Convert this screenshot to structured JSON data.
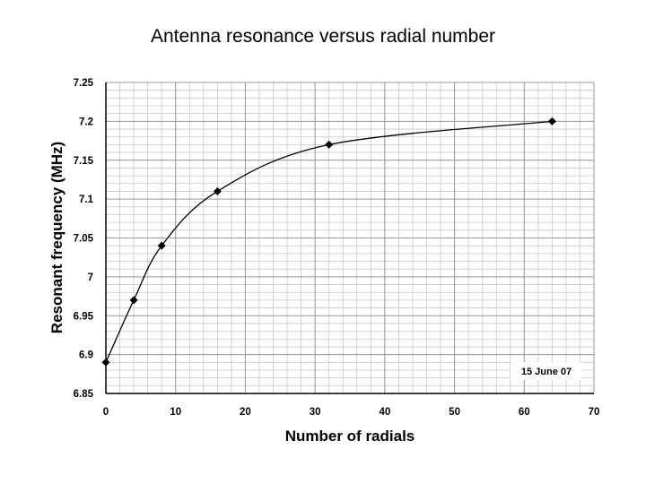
{
  "chart_data": {
    "type": "line",
    "title": "Antenna resonance versus radial number",
    "xlabel": "Number of radials",
    "ylabel": "Resonant frequency (MHz)",
    "xlim": [
      0,
      70
    ],
    "ylim": [
      6.85,
      7.25
    ],
    "x_ticks": [
      0,
      10,
      20,
      30,
      40,
      50,
      60,
      70
    ],
    "y_ticks": [
      6.85,
      6.9,
      6.95,
      7.0,
      7.05,
      7.1,
      7.15,
      7.2,
      7.25
    ],
    "x_tick_labels": [
      "0",
      "10",
      "20",
      "30",
      "40",
      "50",
      "60",
      "70"
    ],
    "y_tick_labels": [
      "6.85",
      "6.9",
      "6.95",
      "7",
      "7.05",
      "7.1",
      "7.15",
      "7.2",
      "7.25"
    ],
    "grid": true,
    "series": [
      {
        "x": [
          0,
          4,
          8,
          16,
          32,
          64
        ],
        "y": [
          6.89,
          6.97,
          7.04,
          7.11,
          7.17,
          7.2
        ]
      }
    ],
    "annotation": "15 June 07",
    "colors": {
      "line": "#000000",
      "marker": "#000000",
      "grid": "#c8c8c8"
    }
  }
}
